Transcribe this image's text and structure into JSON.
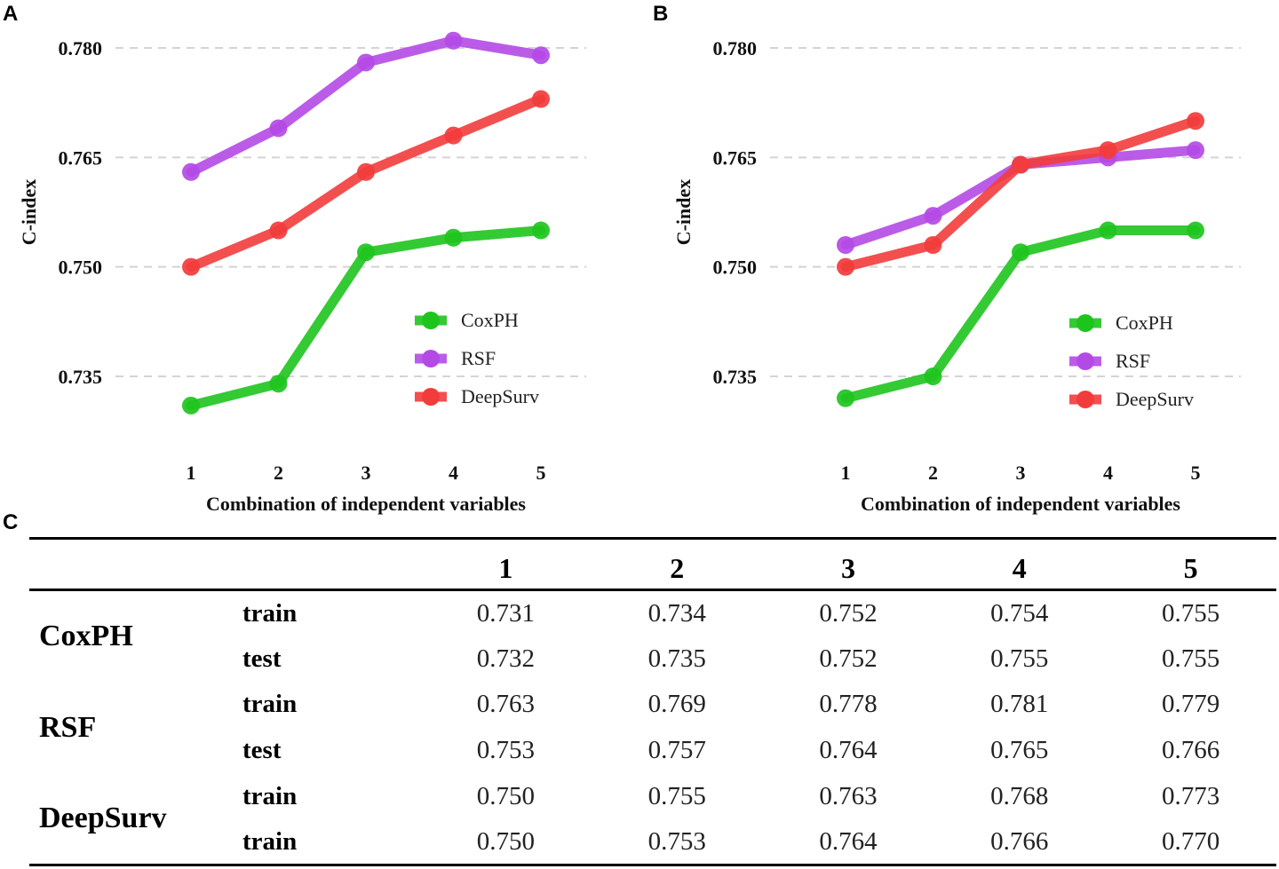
{
  "panels": {
    "a": "A",
    "b": "B",
    "c": "C"
  },
  "chart_data": [
    {
      "type": "line",
      "panel": "A",
      "title": "",
      "xlabel": "Combination of independent variables",
      "ylabel": "C-index",
      "categories": [
        "1",
        "2",
        "3",
        "4",
        "5"
      ],
      "yticks": [
        "0.735",
        "0.750",
        "0.765",
        "0.780"
      ],
      "ylim": [
        0.7235,
        0.7825
      ],
      "legend": "bottom-right",
      "grid": true,
      "series": [
        {
          "name": "CoxPH",
          "color": "#1ec41e",
          "values": [
            0.731,
            0.734,
            0.752,
            0.754,
            0.755
          ]
        },
        {
          "name": "RSF",
          "color": "#b44ae6",
          "values": [
            0.763,
            0.769,
            0.778,
            0.781,
            0.779
          ]
        },
        {
          "name": "DeepSurv",
          "color": "#f23c3c",
          "values": [
            0.75,
            0.755,
            0.763,
            0.768,
            0.773
          ]
        }
      ]
    },
    {
      "type": "line",
      "panel": "B",
      "title": "",
      "xlabel": "Combination of independent variables",
      "ylabel": "C-index",
      "categories": [
        "1",
        "2",
        "3",
        "4",
        "5"
      ],
      "yticks": [
        "0.735",
        "0.750",
        "0.765",
        "0.780"
      ],
      "ylim": [
        0.7235,
        0.7825
      ],
      "legend": "bottom-right",
      "grid": true,
      "series": [
        {
          "name": "CoxPH",
          "color": "#1ec41e",
          "values": [
            0.732,
            0.735,
            0.752,
            0.755,
            0.755
          ]
        },
        {
          "name": "RSF",
          "color": "#b44ae6",
          "values": [
            0.753,
            0.757,
            0.764,
            0.765,
            0.766
          ]
        },
        {
          "name": "DeepSurv",
          "color": "#f23c3c",
          "values": [
            0.75,
            0.753,
            0.764,
            0.766,
            0.77
          ]
        }
      ]
    },
    {
      "type": "table",
      "panel": "C",
      "columns": [
        "1",
        "2",
        "3",
        "4",
        "5"
      ],
      "groups": [
        {
          "model": "CoxPH",
          "rows": [
            {
              "split": "train",
              "values": [
                "0.731",
                "0.734",
                "0.752",
                "0.754",
                "0.755"
              ]
            },
            {
              "split": "test",
              "values": [
                "0.732",
                "0.735",
                "0.752",
                "0.755",
                "0.755"
              ]
            }
          ]
        },
        {
          "model": "RSF",
          "rows": [
            {
              "split": "train",
              "values": [
                "0.763",
                "0.769",
                "0.778",
                "0.781",
                "0.779"
              ]
            },
            {
              "split": "test",
              "values": [
                "0.753",
                "0.757",
                "0.764",
                "0.765",
                "0.766"
              ]
            }
          ]
        },
        {
          "model": "DeepSurv",
          "rows": [
            {
              "split": "train",
              "values": [
                "0.750",
                "0.755",
                "0.763",
                "0.768",
                "0.773"
              ]
            },
            {
              "split": "train",
              "values": [
                "0.750",
                "0.753",
                "0.764",
                "0.766",
                "0.770"
              ]
            }
          ]
        }
      ]
    }
  ]
}
